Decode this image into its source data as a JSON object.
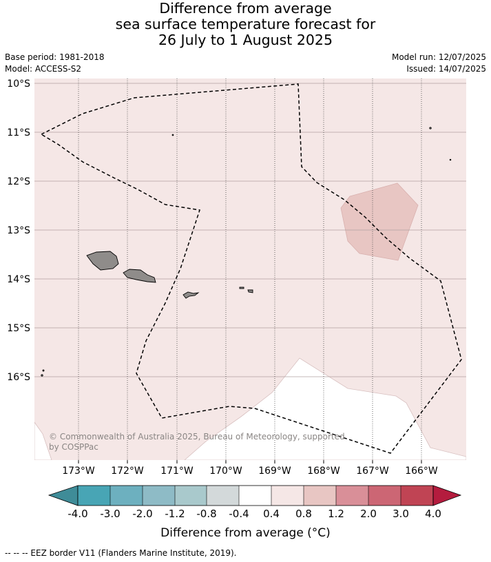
{
  "title": {
    "line1": "Difference from average",
    "line2": "sea surface temperature forecast for",
    "line3": "26 July to 1 August 2025"
  },
  "meta": {
    "base_period": "Base period: 1981-2018",
    "model": "Model: ACCESS-S2",
    "model_run": "Model run: 12/07/2025",
    "issued": "Issued: 14/07/2025"
  },
  "map": {
    "lat_labels": [
      "10°S",
      "11°S",
      "12°S",
      "13°S",
      "14°S",
      "15°S",
      "16°S"
    ],
    "lon_labels": [
      "173°W",
      "172°W",
      "171°W",
      "170°W",
      "169°W",
      "168°W",
      "167°W",
      "166°W"
    ],
    "copyright_line1": "© Commonwealth of Australia 2025, Bureau of Meteorology, supported",
    "copyright_line2": "by COSPPac",
    "background_anomaly_class": "0.4 to 0.8",
    "colors": {
      "background_anomaly": "#f5e7e6",
      "warm_patch": "#e8c6c3",
      "neutral_patch": "#ffffff",
      "land": "#8f8c8a",
      "grid": "#b0a0a0"
    }
  },
  "colorbar": {
    "tick_labels": [
      "-4.0",
      "-3.0",
      "-2.0",
      "-1.2",
      "-0.8",
      "-0.4",
      "0.4",
      "0.8",
      "1.2",
      "2.0",
      "3.0",
      "4.0"
    ],
    "colors": [
      "#3f8c98",
      "#48a5b5",
      "#6db0bf",
      "#8ebbc6",
      "#a9c9cc",
      "#d3d9da",
      "#ffffff",
      "#f5e7e6",
      "#e8c6c3",
      "#d98f98",
      "#cc6674",
      "#c04454",
      "#b41c3e"
    ],
    "title": "Difference from average (°C)"
  },
  "footer": {
    "legend_text": "-- -- -- EEZ border V11 (Flanders Marine Institute, 2019)."
  }
}
